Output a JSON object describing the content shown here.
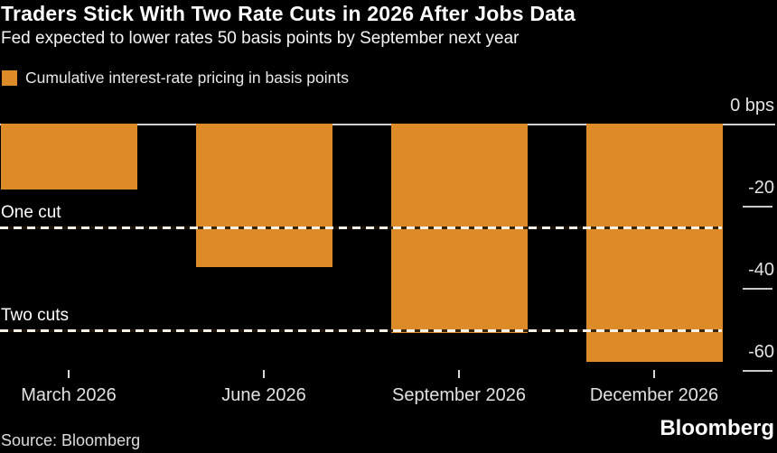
{
  "header": {
    "title": "Traders Stick With Two Rate Cuts in 2026 After Jobs Data",
    "subtitle": "Fed expected to lower rates 50 basis points by September next year"
  },
  "legend": {
    "swatch_color": "#DC8B28",
    "label": "Cumulative interest-rate pricing in basis points"
  },
  "footer": {
    "source": "Source: Bloomberg",
    "brand": "Bloomberg"
  },
  "colors": {
    "background": "#000000",
    "bar": "#DC8B28",
    "axis_line": "#D0D0D0",
    "text": "#FFFFFF"
  },
  "chart_data": {
    "type": "bar",
    "title": "Traders Stick With Two Rate Cuts in 2026 After Jobs Data",
    "subtitle": "Fed expected to lower rates 50 basis points by September next year",
    "legend": "Cumulative interest-rate pricing in basis points",
    "xlabel": "",
    "ylabel": "Cumulative interest-rate pricing in basis points",
    "unit": "bps",
    "categories": [
      "March 2026",
      "June 2026",
      "September 2026",
      "December 2026"
    ],
    "values": [
      -16,
      -35,
      -51,
      -58
    ],
    "ylim": [
      -65,
      0
    ],
    "yticks": [
      0,
      -20,
      -40,
      -60
    ],
    "ytick_labels": [
      "0 bps",
      "-20",
      "-40",
      "-60"
    ],
    "reference_lines": [
      {
        "label": "One cut",
        "value": -25
      },
      {
        "label": "Two cuts",
        "value": -50
      }
    ],
    "bar_color": "#DC8B28",
    "grid": "off",
    "legend_position": "top-left",
    "axis_side": "right"
  }
}
